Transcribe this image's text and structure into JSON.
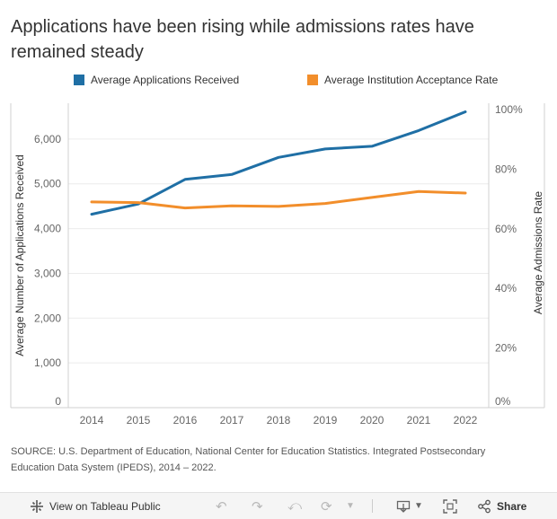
{
  "page": {
    "title": "Applications have been rising while admissions rates have remained steady",
    "source": "SOURCE: U.S. Department of Education, National Center for Education Statistics. Integrated Postsecondary Education Data System (IPEDS), 2014 – 2022."
  },
  "chart_data": {
    "type": "line",
    "title": "Applications have been rising while admissions rates have remained steady",
    "xlabel": "",
    "ylabel": "Average Number of Applications Received",
    "y2label": "Average Admissions Rate",
    "x": [
      "2014",
      "2015",
      "2016",
      "2017",
      "2018",
      "2019",
      "2020",
      "2021",
      "2022"
    ],
    "ylim": [
      0,
      6800
    ],
    "y2lim": [
      0,
      1.0
    ],
    "yticks": [
      0,
      1000,
      2000,
      3000,
      4000,
      5000,
      6000
    ],
    "ytick_labels": [
      "0",
      "1,000",
      "2,000",
      "3,000",
      "4,000",
      "5,000",
      "6,000"
    ],
    "y2ticks": [
      0,
      0.2,
      0.4,
      0.6,
      0.8,
      1.0
    ],
    "y2tick_labels": [
      "0%",
      "20%",
      "40%",
      "60%",
      "80%",
      "100%"
    ],
    "legend_position": "top",
    "series": [
      {
        "name": "Average Applications Received",
        "axis": "left",
        "color": "#1f6fa5",
        "values": [
          4320,
          4550,
          5100,
          5210,
          5590,
          5780,
          5840,
          6190,
          6610
        ]
      },
      {
        "name": "Average Institution Acceptance Rate",
        "axis": "right",
        "color": "#f28e2b",
        "values": [
          0.69,
          0.688,
          0.67,
          0.677,
          0.675,
          0.685,
          0.705,
          0.725,
          0.72
        ]
      }
    ]
  },
  "toolbar": {
    "view_label": "View on Tableau Public",
    "share_label": "Share"
  },
  "icons": {
    "tableau": "tableau-logo-icon",
    "undo": "undo-icon",
    "redo": "redo-icon",
    "revert": "revert-icon",
    "refresh": "refresh-icon",
    "dropdown": "chevron-down-icon",
    "download": "download-icon",
    "fullscreen": "fullscreen-icon",
    "share": "share-icon"
  }
}
